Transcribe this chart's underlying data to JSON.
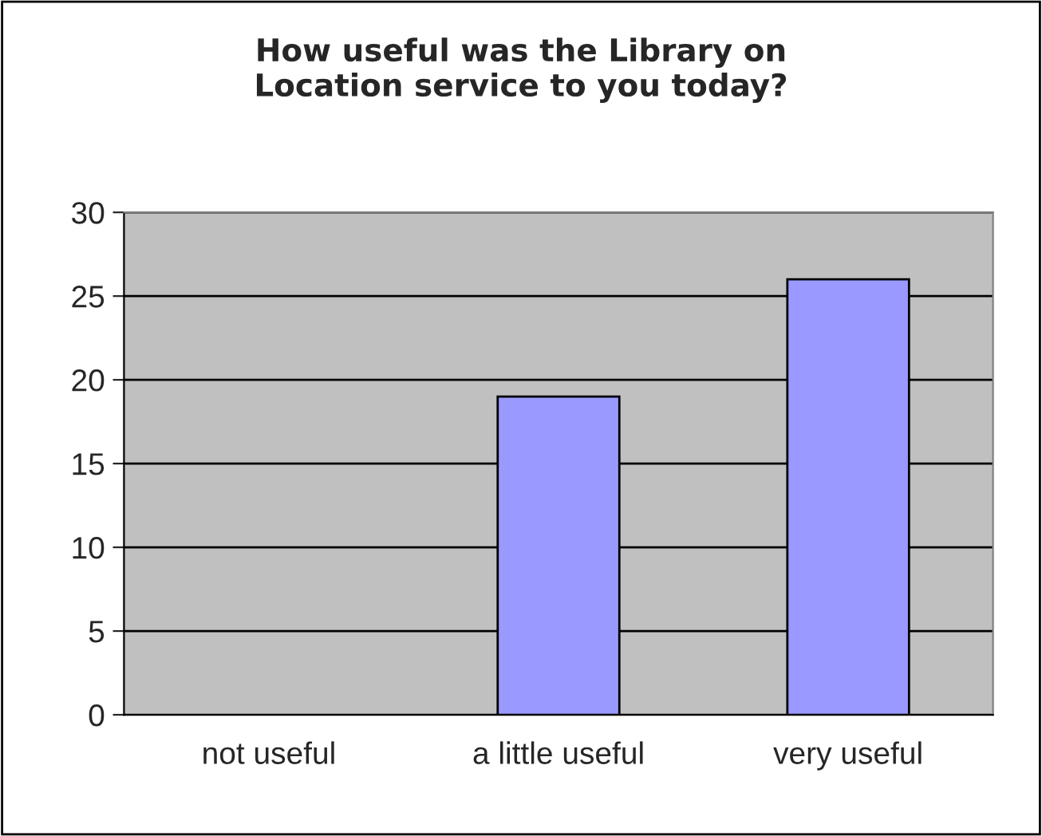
{
  "chart_data": {
    "type": "bar",
    "title": "How useful was the Library on\nLocation service to you today?",
    "categories": [
      "not useful",
      "a little useful",
      "very useful"
    ],
    "values": [
      0,
      19,
      26
    ],
    "color": "#9999ff",
    "ylim": [
      0,
      30
    ],
    "yticks": [
      0,
      5,
      10,
      15,
      20,
      25,
      30
    ],
    "grid": "y",
    "legend": false
  }
}
